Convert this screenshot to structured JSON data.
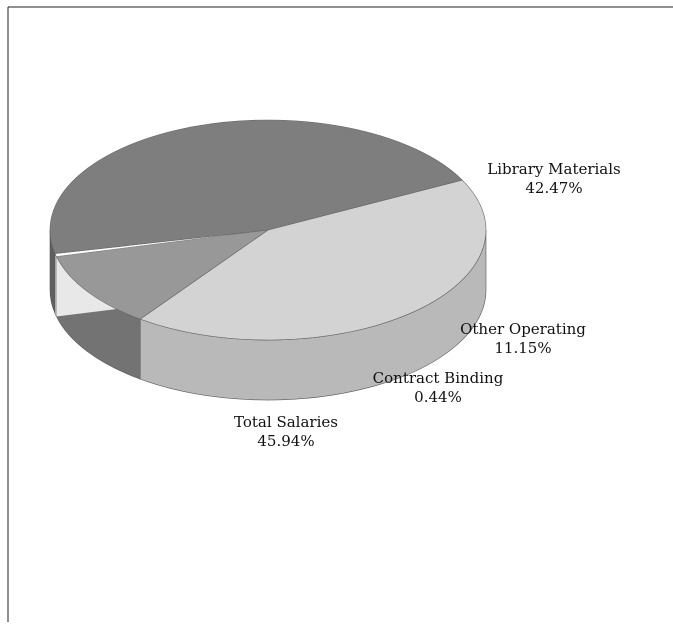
{
  "chart_data": {
    "type": "pie",
    "title": "",
    "slices": [
      {
        "label": "Library Materials",
        "value": 42.47,
        "value_text": "42.47%",
        "color": "#d3d3d3"
      },
      {
        "label": "Other Operating",
        "value": 11.15,
        "value_text": "11.15%",
        "color": "#989898"
      },
      {
        "label": "Contract Binding",
        "value": 0.44,
        "value_text": "0.44%",
        "color": "#ffffff"
      },
      {
        "label": "Total Salaries",
        "value": 45.94,
        "value_text": "45.94%",
        "color": "#7e7e7e"
      }
    ],
    "style": "3d",
    "legend": "none"
  }
}
